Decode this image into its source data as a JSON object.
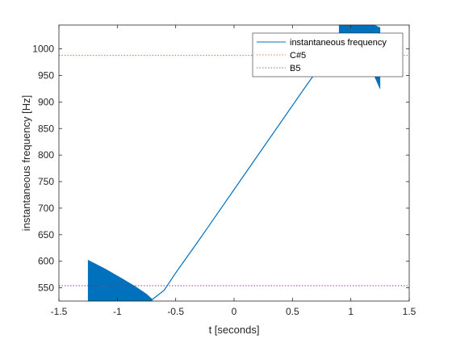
{
  "chart_data": {
    "type": "line",
    "title": "",
    "xlabel": "t [seconds]",
    "ylabel": "instantaneous frequency [Hz]",
    "xlim": [
      -1.5,
      1.5
    ],
    "ylim": [
      525,
      1045
    ],
    "xticks": [
      -1.5,
      -1,
      -0.5,
      0,
      0.5,
      1,
      1.5
    ],
    "xtick_labels": [
      "-1.5",
      "-1",
      "-0.5",
      "0",
      "0.5",
      "1",
      "1.5"
    ],
    "yticks": [
      550,
      600,
      650,
      700,
      750,
      800,
      850,
      900,
      950,
      1000
    ],
    "ytick_labels": [
      "550",
      "600",
      "650",
      "700",
      "750",
      "800",
      "850",
      "900",
      "950",
      "1000"
    ],
    "grid": false,
    "legend_position": "top-right",
    "series": [
      {
        "name": "instantaneous frequency",
        "color": "#0072BD",
        "style": "solid",
        "ridge": {
          "x": [
            -0.7,
            -0.6,
            -0.5,
            -0.3,
            0,
            0.3,
            0.6,
            0.85,
            1.0
          ],
          "y": [
            528,
            545,
            578,
            640,
            735,
            830,
            925,
            1003,
            1030
          ]
        },
        "band_left": {
          "x": [
            -1.25,
            -1.1,
            -0.95,
            -0.85,
            -0.75,
            -0.7
          ],
          "y_upper": [
            602,
            585,
            566,
            553,
            538,
            528
          ],
          "y_lower": [
            525,
            525,
            525,
            525,
            525,
            525
          ]
        },
        "band_right": {
          "x": [
            0.9,
            1.0,
            1.1,
            1.2,
            1.25
          ],
          "y_upper": [
            1045,
            1045,
            1045,
            1045,
            1040
          ],
          "y_lower": [
            990,
            985,
            975,
            950,
            925
          ]
        }
      },
      {
        "name": "C#5",
        "color": "#D95319",
        "style": "dotted",
        "y": 988
      },
      {
        "name": "B5",
        "color": "#7E2F8E",
        "style": "dotted",
        "y": 554
      }
    ]
  }
}
